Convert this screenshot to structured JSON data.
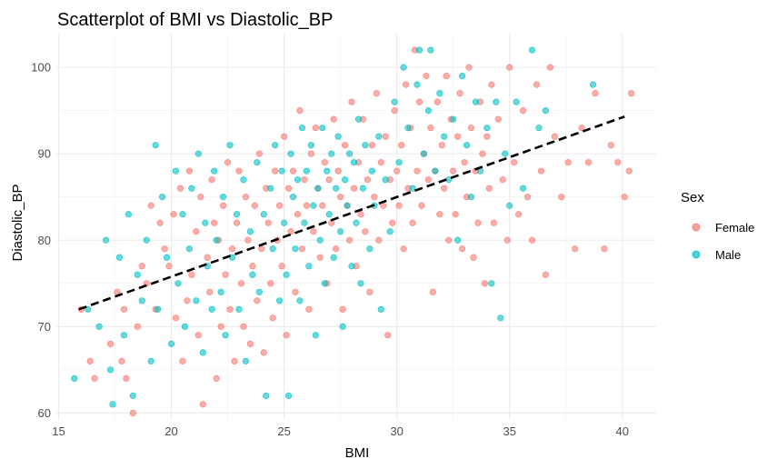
{
  "chart_data": {
    "type": "scatter",
    "title": "Scatterplot of BMI vs Diastolic_BP",
    "xlabel": "BMI",
    "ylabel": "Diastolic_BP",
    "xlim": [
      14.9,
      41.5
    ],
    "ylim": [
      59.2,
      103.8
    ],
    "x_ticks": [
      15,
      20,
      25,
      30,
      35,
      40
    ],
    "y_ticks": [
      60,
      70,
      80,
      90,
      100
    ],
    "grid": true,
    "legend": {
      "title": "Sex",
      "position": "right",
      "entries": [
        {
          "label": "Female",
          "color": "#F8766D"
        },
        {
          "label": "Male",
          "color": "#00BFC4"
        }
      ]
    },
    "series": [
      {
        "name": "Female",
        "color": "#F8766D",
        "points": [
          [
            16,
            72
          ],
          [
            16.4,
            66
          ],
          [
            16.6,
            64
          ],
          [
            17.3,
            68
          ],
          [
            17.6,
            74
          ],
          [
            17.8,
            66
          ],
          [
            17.9,
            72
          ],
          [
            18.0,
            64
          ],
          [
            18.3,
            60
          ],
          [
            18.5,
            70
          ],
          [
            18.7,
            77
          ],
          [
            18.9,
            75
          ],
          [
            19.1,
            84
          ],
          [
            19.3,
            72
          ],
          [
            19.5,
            82
          ],
          [
            19.7,
            79
          ],
          [
            19.9,
            77
          ],
          [
            20.1,
            83
          ],
          [
            20.2,
            71
          ],
          [
            20.4,
            86
          ],
          [
            20.5,
            66
          ],
          [
            20.7,
            73
          ],
          [
            20.8,
            88
          ],
          [
            20.9,
            76
          ],
          [
            21.1,
            81
          ],
          [
            21.2,
            69
          ],
          [
            21.3,
            85
          ],
          [
            21.4,
            61
          ],
          [
            21.6,
            78
          ],
          [
            21.7,
            74
          ],
          [
            21.8,
            87
          ],
          [
            21.9,
            82
          ],
          [
            22.0,
            64
          ],
          [
            22.1,
            80
          ],
          [
            22.2,
            70
          ],
          [
            22.3,
            84
          ],
          [
            22.4,
            76
          ],
          [
            22.5,
            89
          ],
          [
            22.6,
            72
          ],
          [
            22.7,
            79
          ],
          [
            22.8,
            66
          ],
          [
            22.9,
            82
          ],
          [
            23.0,
            88
          ],
          [
            23.1,
            75
          ],
          [
            23.2,
            70
          ],
          [
            23.3,
            85
          ],
          [
            23.4,
            80
          ],
          [
            23.5,
            68
          ],
          [
            23.6,
            77
          ],
          [
            23.7,
            84
          ],
          [
            23.8,
            73
          ],
          [
            23.9,
            90
          ],
          [
            24.0,
            79
          ],
          [
            24.1,
            67
          ],
          [
            24.2,
            86
          ],
          [
            24.3,
            82
          ],
          [
            24.4,
            75
          ],
          [
            24.5,
            71
          ],
          [
            24.6,
            88
          ],
          [
            24.7,
            80
          ],
          [
            24.8,
            84
          ],
          [
            24.9,
            77
          ],
          [
            25.0,
            92
          ],
          [
            25.1,
            69
          ],
          [
            25.2,
            86
          ],
          [
            25.3,
            81
          ],
          [
            25.4,
            88
          ],
          [
            25.5,
            74
          ],
          [
            25.6,
            83
          ],
          [
            25.7,
            95
          ],
          [
            25.8,
            79
          ],
          [
            25.9,
            87
          ],
          [
            26.0,
            84
          ],
          [
            26.1,
            72
          ],
          [
            26.2,
            90
          ],
          [
            26.3,
            81
          ],
          [
            26.4,
            93
          ],
          [
            26.5,
            86
          ],
          [
            26.6,
            78
          ],
          [
            26.7,
            84
          ],
          [
            26.8,
            89
          ],
          [
            26.9,
            75
          ],
          [
            27.0,
            87
          ],
          [
            27.1,
            82
          ],
          [
            27.2,
            94
          ],
          [
            27.3,
            79
          ],
          [
            27.4,
            88
          ],
          [
            27.5,
            85
          ],
          [
            27.6,
            72
          ],
          [
            27.7,
            91
          ],
          [
            27.8,
            84
          ],
          [
            27.9,
            80
          ],
          [
            28.0,
            96
          ],
          [
            28.1,
            86
          ],
          [
            28.2,
            77
          ],
          [
            28.3,
            89
          ],
          [
            28.4,
            83
          ],
          [
            28.5,
            94
          ],
          [
            28.6,
            81
          ],
          [
            28.7,
            87
          ],
          [
            28.8,
            74
          ],
          [
            28.9,
            91
          ],
          [
            29.0,
            85
          ],
          [
            29.1,
            97
          ],
          [
            29.2,
            80
          ],
          [
            29.3,
            89
          ],
          [
            29.4,
            84
          ],
          [
            29.5,
            92
          ],
          [
            29.6,
            69
          ],
          [
            29.7,
            87
          ],
          [
            29.8,
            82
          ],
          [
            29.9,
            95
          ],
          [
            30.0,
            88
          ],
          [
            30.1,
            84
          ],
          [
            30.2,
            91
          ],
          [
            30.3,
            79
          ],
          [
            30.4,
            98
          ],
          [
            30.5,
            86
          ],
          [
            30.6,
            93
          ],
          [
            30.7,
            82
          ],
          [
            30.8,
            102
          ],
          [
            30.9,
            88
          ],
          [
            31.0,
            96
          ],
          [
            31.1,
            84
          ],
          [
            31.2,
            90
          ],
          [
            31.3,
            99
          ],
          [
            31.4,
            87
          ],
          [
            31.5,
            93
          ],
          [
            31.6,
            74
          ],
          [
            31.7,
            88
          ],
          [
            31.8,
            96
          ],
          [
            31.9,
            83
          ],
          [
            32.0,
            91
          ],
          [
            32.1,
            86
          ],
          [
            32.2,
            99
          ],
          [
            32.3,
            80
          ],
          [
            32.4,
            94
          ],
          [
            32.5,
            88
          ],
          [
            32.6,
            83
          ],
          [
            32.7,
            92
          ],
          [
            32.8,
            97
          ],
          [
            32.9,
            79
          ],
          [
            33.0,
            89
          ],
          [
            33.1,
            85
          ],
          [
            33.2,
            100
          ],
          [
            33.3,
            93
          ],
          [
            33.4,
            78
          ],
          [
            33.5,
            88
          ],
          [
            33.6,
            82
          ],
          [
            33.7,
            96
          ],
          [
            33.8,
            90
          ],
          [
            33.9,
            75
          ],
          [
            34.0,
            92
          ],
          [
            34.1,
            86
          ],
          [
            34.2,
            98
          ],
          [
            34.3,
            82
          ],
          [
            34.5,
            94
          ],
          [
            34.7,
            87
          ],
          [
            34.9,
            80
          ],
          [
            35.0,
            100
          ],
          [
            35.2,
            89
          ],
          [
            35.4,
            83
          ],
          [
            35.6,
            95
          ],
          [
            35.8,
            85
          ],
          [
            36.0,
            80
          ],
          [
            36.2,
            98
          ],
          [
            36.4,
            88
          ],
          [
            36.6,
            76
          ],
          [
            36.8,
            100
          ],
          [
            37.0,
            92
          ],
          [
            37.3,
            85
          ],
          [
            37.6,
            89
          ],
          [
            37.9,
            79
          ],
          [
            38.2,
            93
          ],
          [
            38.5,
            89
          ],
          [
            38.8,
            97
          ],
          [
            39.2,
            79
          ],
          [
            39.5,
            91
          ],
          [
            39.8,
            89
          ],
          [
            40.1,
            85
          ],
          [
            40.3,
            88
          ],
          [
            40.4,
            97
          ]
        ]
      },
      {
        "name": "Male",
        "color": "#00BFC4",
        "points": [
          [
            15.7,
            64
          ],
          [
            16.3,
            72
          ],
          [
            16.8,
            70
          ],
          [
            17.1,
            80
          ],
          [
            17.3,
            65
          ],
          [
            17.4,
            61
          ],
          [
            17.7,
            78
          ],
          [
            17.9,
            69
          ],
          [
            18.1,
            83
          ],
          [
            18.3,
            62
          ],
          [
            18.5,
            76
          ],
          [
            18.7,
            73
          ],
          [
            18.9,
            80
          ],
          [
            19.1,
            66
          ],
          [
            19.3,
            91
          ],
          [
            19.4,
            72
          ],
          [
            19.6,
            85
          ],
          [
            19.8,
            78
          ],
          [
            20.0,
            68
          ],
          [
            20.2,
            88
          ],
          [
            20.3,
            75
          ],
          [
            20.5,
            83
          ],
          [
            20.6,
            70
          ],
          [
            20.8,
            79
          ],
          [
            20.9,
            86
          ],
          [
            21.1,
            73
          ],
          [
            21.2,
            90
          ],
          [
            21.4,
            67
          ],
          [
            21.5,
            82
          ],
          [
            21.6,
            77
          ],
          [
            21.8,
            72
          ],
          [
            21.9,
            88
          ],
          [
            22.0,
            80
          ],
          [
            22.2,
            74
          ],
          [
            22.3,
            85
          ],
          [
            22.4,
            69
          ],
          [
            22.6,
            91
          ],
          [
            22.7,
            78
          ],
          [
            22.9,
            83
          ],
          [
            23.0,
            72
          ],
          [
            23.2,
            87
          ],
          [
            23.3,
            66
          ],
          [
            23.5,
            81
          ],
          [
            23.6,
            76
          ],
          [
            23.8,
            89
          ],
          [
            23.9,
            74
          ],
          [
            24.1,
            83
          ],
          [
            24.2,
            62
          ],
          [
            24.4,
            86
          ],
          [
            24.5,
            79
          ],
          [
            24.6,
            91
          ],
          [
            24.8,
            73
          ],
          [
            24.9,
            88
          ],
          [
            25.0,
            82
          ],
          [
            25.1,
            76
          ],
          [
            25.2,
            62
          ],
          [
            25.3,
            90
          ],
          [
            25.4,
            85
          ],
          [
            25.5,
            79
          ],
          [
            25.6,
            87
          ],
          [
            25.7,
            73
          ],
          [
            25.8,
            93
          ],
          [
            25.9,
            82
          ],
          [
            26.0,
            88
          ],
          [
            26.1,
            77
          ],
          [
            26.2,
            91
          ],
          [
            26.3,
            84
          ],
          [
            26.4,
            69
          ],
          [
            26.5,
            86
          ],
          [
            26.6,
            80
          ],
          [
            26.7,
            93
          ],
          [
            26.8,
            75
          ],
          [
            26.9,
            88
          ],
          [
            27.0,
            83
          ],
          [
            27.1,
            90
          ],
          [
            27.2,
            78
          ],
          [
            27.3,
            86
          ],
          [
            27.4,
            92
          ],
          [
            27.5,
            81
          ],
          [
            27.6,
            70
          ],
          [
            27.7,
            87
          ],
          [
            27.8,
            84
          ],
          [
            27.9,
            90
          ],
          [
            28.0,
            77
          ],
          [
            28.1,
            89
          ],
          [
            28.2,
            82
          ],
          [
            28.3,
            94
          ],
          [
            28.4,
            75
          ],
          [
            28.5,
            86
          ],
          [
            28.6,
            91
          ],
          [
            28.8,
            79
          ],
          [
            28.9,
            88
          ],
          [
            29.0,
            84
          ],
          [
            29.2,
            92
          ],
          [
            29.3,
            72
          ],
          [
            29.5,
            87
          ],
          [
            29.7,
            81
          ],
          [
            29.9,
            96
          ],
          [
            30.1,
            89
          ],
          [
            30.3,
            100
          ],
          [
            30.5,
            93
          ],
          [
            30.7,
            86
          ],
          [
            30.9,
            98
          ],
          [
            31.0,
            102
          ],
          [
            31.2,
            90
          ],
          [
            31.4,
            95
          ],
          [
            31.5,
            102
          ],
          [
            31.7,
            88
          ],
          [
            31.9,
            97
          ],
          [
            32.1,
            92
          ],
          [
            32.3,
            87
          ],
          [
            32.5,
            94
          ],
          [
            32.7,
            80
          ],
          [
            32.9,
            99
          ],
          [
            33.1,
            91
          ],
          [
            33.3,
            85
          ],
          [
            33.5,
            96
          ],
          [
            33.7,
            88
          ],
          [
            34.0,
            93
          ],
          [
            34.2,
            75
          ],
          [
            34.4,
            96
          ],
          [
            34.6,
            71
          ],
          [
            34.8,
            90
          ],
          [
            35.0,
            84
          ],
          [
            35.3,
            96
          ],
          [
            35.6,
            86
          ],
          [
            36.0,
            102
          ],
          [
            36.3,
            93
          ],
          [
            36.6,
            95
          ],
          [
            38.7,
            98
          ]
        ]
      }
    ],
    "trendline": {
      "style": "dashed",
      "color": "#000000",
      "x": [
        15.9,
        40.1
      ],
      "y": [
        72.0,
        94.3
      ]
    }
  }
}
